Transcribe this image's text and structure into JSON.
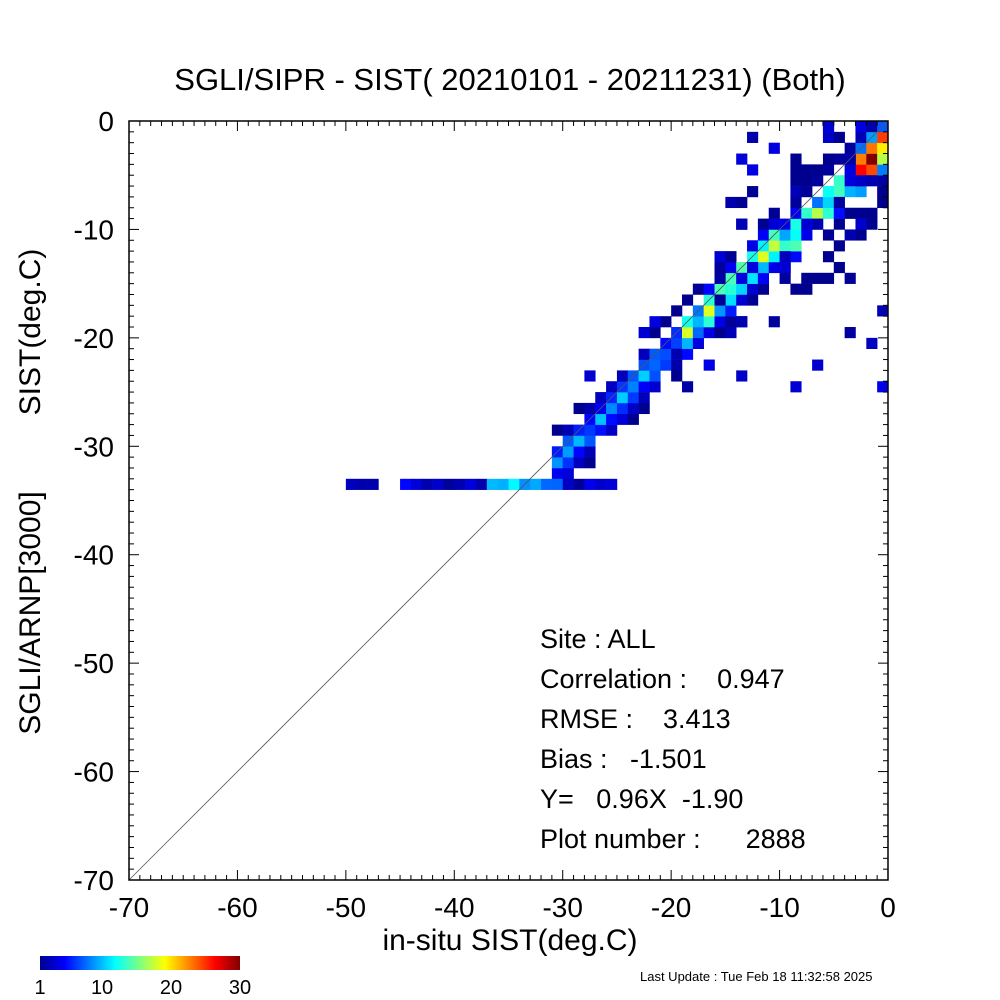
{
  "chart_data": {
    "type": "heatmap",
    "title": "SGLI/SIPR - SIST( 20210101 - 20211231) (Both)",
    "xlabel": "in-situ SIST(deg.C)",
    "ylabel_lines": [
      "SGLI/ARNP[3000]",
      "SIST(deg.C)"
    ],
    "xlim": [
      -70,
      0
    ],
    "ylim": [
      -70,
      0
    ],
    "x_ticks": [
      -70,
      -60,
      -50,
      -40,
      -30,
      -20,
      -10,
      0
    ],
    "y_ticks": [
      -70,
      -60,
      -50,
      -40,
      -30,
      -20,
      -10,
      0
    ],
    "x_tick_labels": [
      "-70",
      "-60",
      "-50",
      "-40",
      "-30",
      "-20",
      "-10",
      "0"
    ],
    "y_tick_labels": [
      "-70",
      "-60",
      "-50",
      "-40",
      "-30",
      "-20",
      "-10",
      "0"
    ],
    "reference_line": "y = x (1:1)",
    "bin_size": 1,
    "color_scale": {
      "min": 1,
      "max": 30,
      "tick_values": [
        1,
        10,
        20,
        30
      ],
      "tick_labels": [
        "1",
        "10",
        "20",
        "30"
      ],
      "colors": [
        "#00008f",
        "#0000ff",
        "#0080ff",
        "#00ffff",
        "#80ff80",
        "#ffff00",
        "#ff8000",
        "#ff0000",
        "#800000"
      ]
    },
    "density_band": {
      "x_range": [
        -31,
        0
      ],
      "slope": 0.96,
      "intercept": -1.9,
      "floor_value": -33.6,
      "floor_x_range": [
        -50,
        -25
      ]
    },
    "statistics": {
      "site": "Site : ALL",
      "correlation": "Correlation :    0.947",
      "rmse": "RMSE :    3.413",
      "bias": "Bias :   -1.501",
      "regression": "Y=   0.96X  -1.90",
      "plot_number": "Plot number :      2888"
    },
    "grid": false,
    "legend": "colorbar bottom-left"
  },
  "footer": {
    "last_update": "Last Update : Tue Feb 18 11:32:58 2025"
  }
}
